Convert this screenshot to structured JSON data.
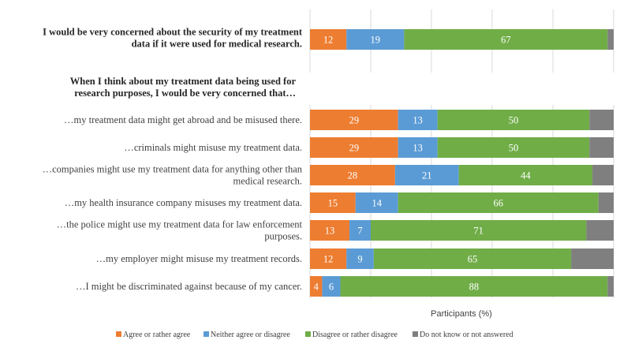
{
  "chart_data": {
    "type": "bar",
    "stacked": true,
    "orientation": "horizontal",
    "xlabel": "Participants (%)",
    "xlim": [
      0,
      100
    ],
    "grid": true,
    "legend_position": "bottom",
    "colors": {
      "agree": "#ed7d31",
      "neither": "#5b9bd5",
      "disagree": "#70ad47",
      "dontknow": "#7f7f7f"
    },
    "first_item": {
      "label_lines": [
        "I would be very concerned about the security of my treatment",
        "data if it were used for medical research."
      ],
      "values": [
        12,
        19,
        67,
        2
      ]
    },
    "group_heading": [
      "When I think about my treatment data being used for",
      "research purposes, I would be very concerned that…"
    ],
    "items": [
      {
        "label_lines": [
          "…my treatment data might get abroad and be misused there."
        ],
        "values": [
          29,
          13,
          50,
          8
        ]
      },
      {
        "label_lines": [
          "…criminals might misuse my treatment data."
        ],
        "values": [
          29,
          13,
          50,
          8
        ]
      },
      {
        "label_lines": [
          "…companies might use my treatment data for anything  other than",
          "medical research."
        ],
        "values": [
          28,
          21,
          44,
          7
        ]
      },
      {
        "label_lines": [
          "…my health insurance company misuses my treatment data."
        ],
        "values": [
          15,
          14,
          66,
          5
        ]
      },
      {
        "label_lines": [
          "…the police might use my treatment data for law enforcement",
          "purposes."
        ],
        "values": [
          13,
          7,
          71,
          9
        ]
      },
      {
        "label_lines": [
          "…my employer might misuse my treatment records."
        ],
        "values": [
          12,
          9,
          65,
          14
        ]
      },
      {
        "label_lines": [
          "…I might be discriminated  against because of my cancer."
        ],
        "values": [
          4,
          6,
          88,
          2
        ]
      }
    ],
    "series": [
      {
        "name": "Agree or rather agree",
        "key": "agree"
      },
      {
        "name": "Neither agree or disagree",
        "key": "neither"
      },
      {
        "name": "Disagree or rather disagree",
        "key": "disagree"
      },
      {
        "name": "Do not know or not answered",
        "key": "dontknow"
      }
    ]
  }
}
